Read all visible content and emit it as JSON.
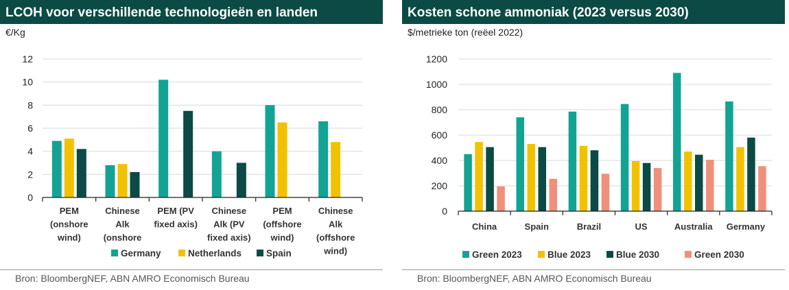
{
  "colors": {
    "title_bg": "#0b4a45",
    "green_teal": "#13a394",
    "yellow": "#f2c200",
    "dark_green": "#0b4a45",
    "salmon": "#f0907c"
  },
  "chart_data": [
    {
      "type": "bar",
      "title": "LCOH voor verschillende technologieën en landen",
      "ylabel": "€/Kg",
      "xlabel": "",
      "ylim": [
        0,
        12
      ],
      "yticks": [
        0,
        2,
        4,
        6,
        8,
        10,
        12
      ],
      "grid": true,
      "legend_placement": "bottom",
      "categories": [
        [
          "PEM",
          "(onshore",
          "wind)"
        ],
        [
          "Chinese",
          "Alk",
          "(onshore"
        ],
        [
          "PEM (PV",
          "fixed axis)"
        ],
        [
          "Chinese",
          "Alk (PV",
          "fixed axis)"
        ],
        [
          "PEM",
          "(offshore",
          "wind)"
        ],
        [
          "Chinese",
          "Alk",
          "(offshore",
          "wind)"
        ]
      ],
      "series": [
        {
          "name": "Germany",
          "color": "#13a394",
          "values": [
            4.9,
            2.8,
            10.2,
            4.0,
            8.0,
            6.6
          ]
        },
        {
          "name": "Netherlands",
          "color": "#f2c200",
          "values": [
            5.1,
            2.9,
            null,
            null,
            6.5,
            4.8
          ]
        },
        {
          "name": "Spain",
          "color": "#0b4a45",
          "values": [
            4.2,
            2.2,
            7.5,
            3.0,
            null,
            null
          ]
        }
      ],
      "source": "Bron: BloombergNEF, ABN AMRO Economisch Bureau"
    },
    {
      "type": "bar",
      "title": "Kosten schone ammoniak (2023 versus 2030)",
      "ylabel": "$/metrieke ton (reëel 2022)",
      "xlabel": "",
      "ylim": [
        0,
        1200
      ],
      "yticks": [
        0,
        200,
        400,
        600,
        800,
        1000,
        1200
      ],
      "grid": true,
      "legend_placement": "bottom",
      "categories": [
        [
          "China"
        ],
        [
          "Spain"
        ],
        [
          "Brazil"
        ],
        [
          "US"
        ],
        [
          "Australia"
        ],
        [
          "Germany"
        ]
      ],
      "series": [
        {
          "name": "Green 2023",
          "color": "#13a394",
          "values": [
            450,
            740,
            785,
            845,
            1090,
            865
          ]
        },
        {
          "name": "Blue 2023",
          "color": "#f2c200",
          "values": [
            545,
            530,
            515,
            395,
            470,
            505
          ]
        },
        {
          "name": "Blue 2030",
          "color": "#0b4a45",
          "values": [
            505,
            505,
            480,
            380,
            445,
            580
          ]
        },
        {
          "name": "Green 2030",
          "color": "#f0907c",
          "values": [
            195,
            255,
            295,
            340,
            405,
            355
          ]
        }
      ],
      "source": "Bron: BloombergNEF, ABN AMRO Economisch Bureau"
    }
  ]
}
